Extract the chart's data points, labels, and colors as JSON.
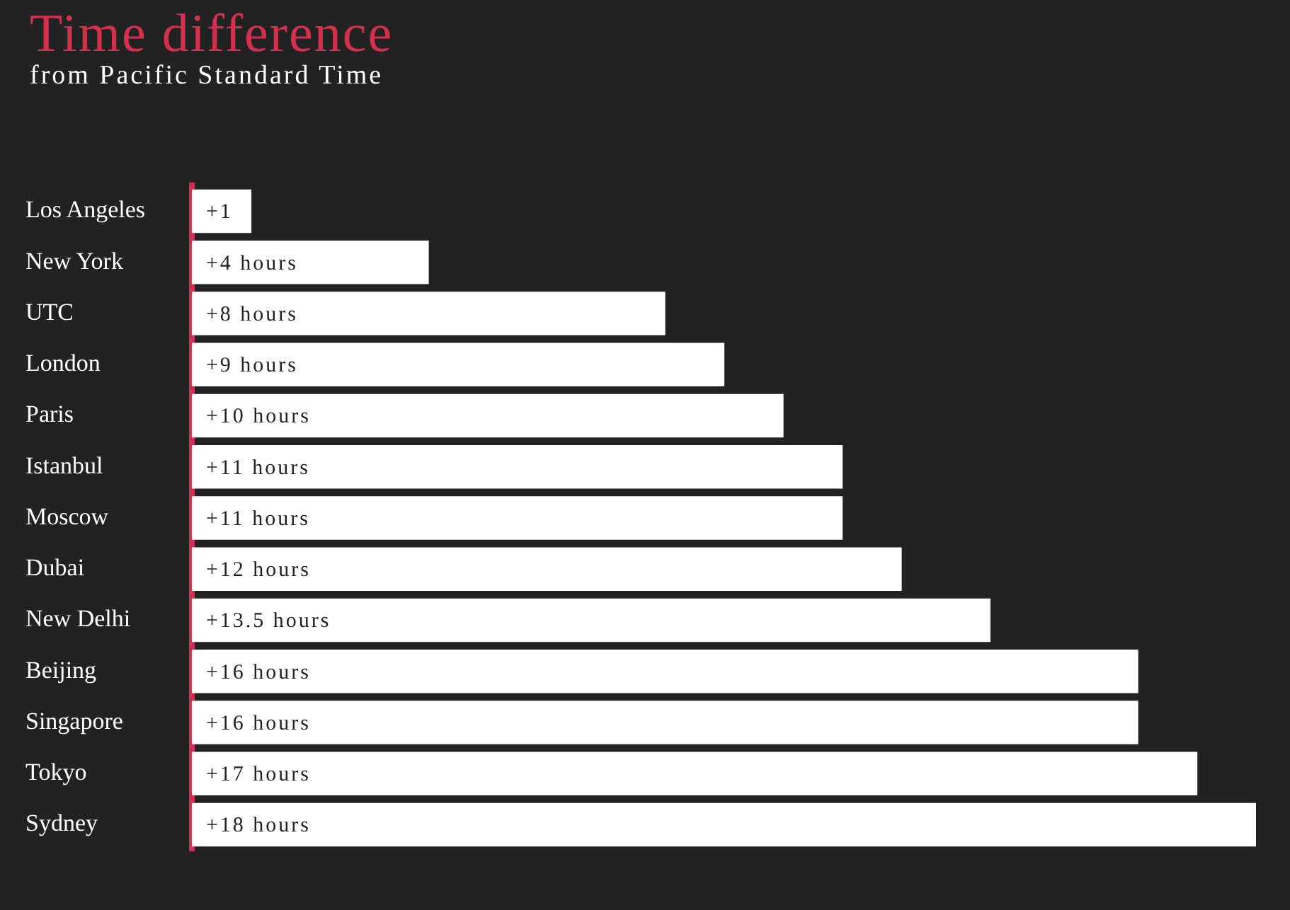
{
  "chart_data": {
    "type": "bar",
    "orientation": "horizontal",
    "title": "Time difference",
    "subtitle": "from Pacific Standard Time",
    "categories": [
      "Los Angeles",
      "New York",
      "UTC",
      "London",
      "Paris",
      "Istanbul",
      "Moscow",
      "Dubai",
      "New Delhi",
      "Beijing",
      "Singapore",
      "Tokyo",
      "Sydney"
    ],
    "values": [
      1,
      4,
      8,
      9,
      10,
      11,
      11,
      12,
      13.5,
      16,
      16,
      17,
      18
    ],
    "value_labels": [
      "+1",
      "+4 hours",
      "+8 hours",
      "+9 hours",
      "+10 hours",
      "+11 hours",
      "+11 hours",
      "+12 hours",
      "+13.5 hours",
      "+16 hours",
      "+16 hours",
      "+17 hours",
      "+18 hours"
    ],
    "color": "#ffffff",
    "legend": false,
    "tick_labels": "y"
  }
}
